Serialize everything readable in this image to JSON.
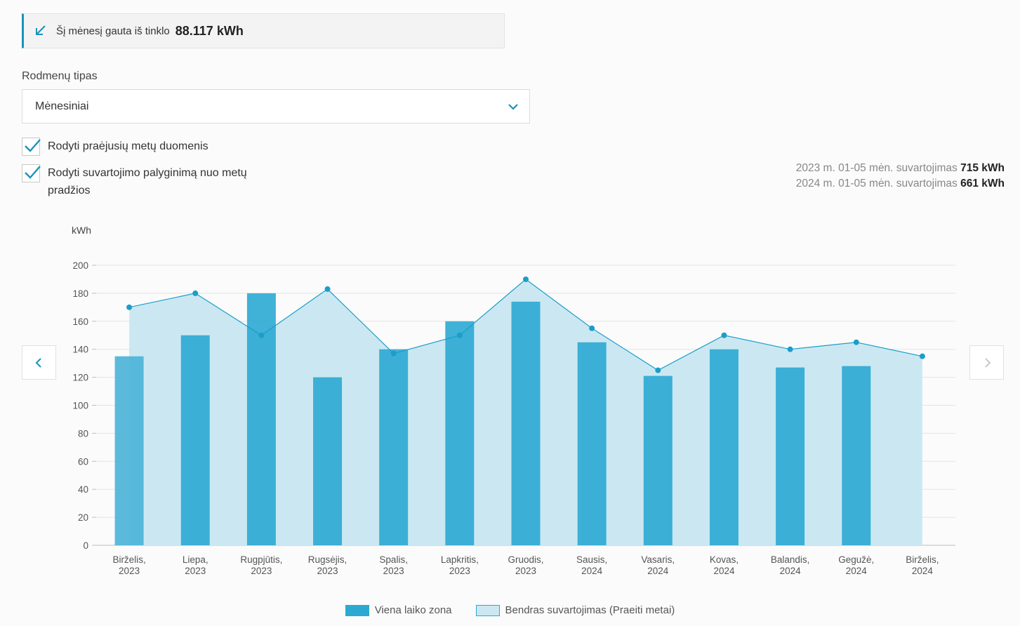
{
  "summary": {
    "label": "Šį mėnesį gauta iš tinklo",
    "value": "88.117 kWh"
  },
  "reading_type": {
    "label": "Rodmenų tipas",
    "selected": "Mėnesiniai"
  },
  "options": {
    "show_previous_year": "Rodyti praėjusių metų duomenis",
    "show_comparison": "Rodyti suvartojimo palyginimą nuo metų pradžios"
  },
  "stats": {
    "line1_label": "2023 m. 01-05 mėn. suvartojimas",
    "line1_value": "715 kWh",
    "line2_label": "2024 m. 01-05 mėn. suvartojimas",
    "line2_value": "661 kWh"
  },
  "icons": {
    "summary": "arrow-down-left-icon",
    "select": "chevron-down-icon",
    "prev": "chevron-left-icon",
    "next": "chevron-right-icon"
  },
  "colors": {
    "bar": "#2ba9d3",
    "bar_first": "#49b3d8",
    "area_fill": "#cbe8f2",
    "line": "#1b9ec9",
    "accent": "#1b93b8"
  },
  "chart_data": {
    "type": "bar",
    "ylabel": "kWh",
    "ylim": [
      0,
      200
    ],
    "yticks": [
      0,
      20,
      40,
      60,
      80,
      100,
      120,
      140,
      160,
      180,
      200
    ],
    "categories": [
      [
        "Birželis,",
        "2023"
      ],
      [
        "Liepa,",
        "2023"
      ],
      [
        "Rugpjūtis,",
        "2023"
      ],
      [
        "Rugsėjis,",
        "2023"
      ],
      [
        "Spalis,",
        "2023"
      ],
      [
        "Lapkritis,",
        "2023"
      ],
      [
        "Gruodis,",
        "2023"
      ],
      [
        "Sausis,",
        "2024"
      ],
      [
        "Vasaris,",
        "2024"
      ],
      [
        "Kovas,",
        "2024"
      ],
      [
        "Balandis,",
        "2024"
      ],
      [
        "Gegužė,",
        "2024"
      ],
      [
        "Birželis,",
        "2024"
      ]
    ],
    "series": [
      {
        "name": "Viena laiko zona",
        "kind": "bar",
        "values": [
          135,
          150,
          180,
          120,
          140,
          160,
          174,
          145,
          121,
          140,
          127,
          128,
          null
        ]
      },
      {
        "name": "Bendras suvartojimas (Praeiti metai)",
        "kind": "area",
        "values": [
          170,
          180,
          150,
          183,
          137,
          150,
          190,
          155,
          125,
          150,
          140,
          145,
          135
        ]
      }
    ],
    "grid": true,
    "legend": "bottom-center"
  }
}
